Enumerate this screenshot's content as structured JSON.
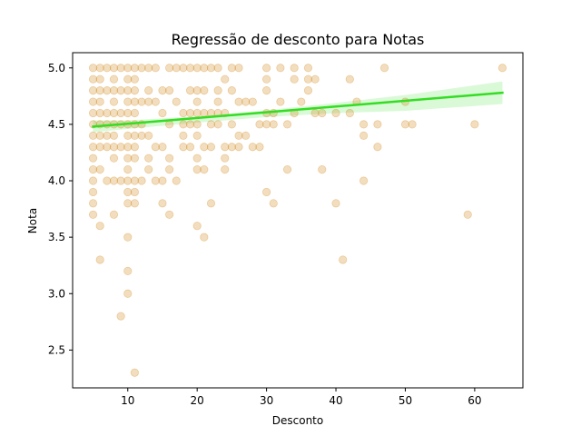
{
  "chart_data": {
    "type": "scatter",
    "title": "Regressão de desconto para Notas",
    "xlabel": "Desconto",
    "ylabel": "Nota",
    "xlim": [
      2.05,
      66.95
    ],
    "ylim": [
      2.165,
      5.135
    ],
    "xticks": [
      10,
      20,
      30,
      40,
      50,
      60
    ],
    "yticks": [
      2.5,
      3.0,
      3.5,
      4.0,
      4.5,
      5.0
    ],
    "xtick_labels": [
      "10",
      "20",
      "30",
      "40",
      "50",
      "60"
    ],
    "ytick_labels": [
      "2.5",
      "3.0",
      "3.5",
      "4.0",
      "4.5",
      "5.0"
    ],
    "grid": false,
    "point_color": "#cc7a00",
    "point_alpha": 0.25,
    "line_color": "#33dd22",
    "band_color": "#33dd22",
    "regression": {
      "x": [
        5,
        64
      ],
      "y": [
        4.48,
        4.78
      ]
    },
    "band": {
      "x": [
        5,
        10,
        20,
        30,
        40,
        50,
        64
      ],
      "upper": [
        4.535,
        4.535,
        4.57,
        4.625,
        4.69,
        4.76,
        4.88
      ],
      "lower": [
        4.43,
        4.46,
        4.515,
        4.565,
        4.6,
        4.62,
        4.68
      ]
    },
    "points": [
      [
        5,
        5.0
      ],
      [
        5,
        4.9
      ],
      [
        5,
        4.8
      ],
      [
        5,
        4.7
      ],
      [
        5,
        4.6
      ],
      [
        5,
        4.5
      ],
      [
        5,
        4.4
      ],
      [
        5,
        4.3
      ],
      [
        5,
        4.2
      ],
      [
        5,
        4.1
      ],
      [
        5,
        4.0
      ],
      [
        5,
        3.9
      ],
      [
        5,
        3.8
      ],
      [
        5,
        3.7
      ],
      [
        6,
        5.0
      ],
      [
        6,
        4.9
      ],
      [
        6,
        4.8
      ],
      [
        6,
        4.7
      ],
      [
        6,
        4.6
      ],
      [
        6,
        4.5
      ],
      [
        6,
        4.4
      ],
      [
        6,
        4.3
      ],
      [
        6,
        4.1
      ],
      [
        6,
        3.6
      ],
      [
        6,
        3.3
      ],
      [
        7,
        5.0
      ],
      [
        7,
        4.8
      ],
      [
        7,
        4.6
      ],
      [
        7,
        4.5
      ],
      [
        7,
        4.4
      ],
      [
        7,
        4.3
      ],
      [
        7,
        4.0
      ],
      [
        8,
        5.0
      ],
      [
        8,
        4.9
      ],
      [
        8,
        4.8
      ],
      [
        8,
        4.7
      ],
      [
        8,
        4.6
      ],
      [
        8,
        4.5
      ],
      [
        8,
        4.4
      ],
      [
        8,
        4.3
      ],
      [
        8,
        4.2
      ],
      [
        8,
        4.0
      ],
      [
        8,
        3.7
      ],
      [
        9,
        5.0
      ],
      [
        9,
        4.8
      ],
      [
        9,
        4.6
      ],
      [
        9,
        4.5
      ],
      [
        9,
        4.3
      ],
      [
        9,
        4.0
      ],
      [
        9,
        2.8
      ],
      [
        10,
        5.0
      ],
      [
        10,
        4.9
      ],
      [
        10,
        4.8
      ],
      [
        10,
        4.7
      ],
      [
        10,
        4.6
      ],
      [
        10,
        4.5
      ],
      [
        10,
        4.4
      ],
      [
        10,
        4.3
      ],
      [
        10,
        4.2
      ],
      [
        10,
        4.1
      ],
      [
        10,
        4.0
      ],
      [
        10,
        3.9
      ],
      [
        10,
        3.8
      ],
      [
        10,
        3.5
      ],
      [
        10,
        3.2
      ],
      [
        10,
        3.0
      ],
      [
        11,
        5.0
      ],
      [
        11,
        4.9
      ],
      [
        11,
        4.8
      ],
      [
        11,
        4.7
      ],
      [
        11,
        4.6
      ],
      [
        11,
        4.5
      ],
      [
        11,
        4.4
      ],
      [
        11,
        4.3
      ],
      [
        11,
        4.2
      ],
      [
        11,
        4.0
      ],
      [
        11,
        3.9
      ],
      [
        11,
        3.8
      ],
      [
        11,
        2.3
      ],
      [
        12,
        5.0
      ],
      [
        12,
        4.7
      ],
      [
        12,
        4.5
      ],
      [
        12,
        4.4
      ],
      [
        12,
        4.0
      ],
      [
        13,
        5.0
      ],
      [
        13,
        4.8
      ],
      [
        13,
        4.7
      ],
      [
        13,
        4.4
      ],
      [
        13,
        4.2
      ],
      [
        13,
        4.1
      ],
      [
        14,
        5.0
      ],
      [
        14,
        4.7
      ],
      [
        14,
        4.3
      ],
      [
        14,
        4.0
      ],
      [
        15,
        4.8
      ],
      [
        15,
        4.6
      ],
      [
        15,
        4.3
      ],
      [
        15,
        4.0
      ],
      [
        15,
        3.8
      ],
      [
        16,
        5.0
      ],
      [
        16,
        4.8
      ],
      [
        16,
        4.5
      ],
      [
        16,
        4.2
      ],
      [
        16,
        4.1
      ],
      [
        16,
        3.7
      ],
      [
        17,
        5.0
      ],
      [
        17,
        4.7
      ],
      [
        17,
        4.0
      ],
      [
        18,
        5.0
      ],
      [
        18,
        4.6
      ],
      [
        18,
        4.5
      ],
      [
        18,
        4.4
      ],
      [
        18,
        4.3
      ],
      [
        19,
        5.0
      ],
      [
        19,
        4.8
      ],
      [
        19,
        4.6
      ],
      [
        19,
        4.5
      ],
      [
        19,
        4.3
      ],
      [
        20,
        5.0
      ],
      [
        20,
        4.8
      ],
      [
        20,
        4.7
      ],
      [
        20,
        4.6
      ],
      [
        20,
        4.5
      ],
      [
        20,
        4.4
      ],
      [
        20,
        4.2
      ],
      [
        20,
        4.1
      ],
      [
        20,
        3.6
      ],
      [
        21,
        5.0
      ],
      [
        21,
        4.8
      ],
      [
        21,
        4.6
      ],
      [
        21,
        4.3
      ],
      [
        21,
        4.1
      ],
      [
        21,
        3.5
      ],
      [
        22,
        5.0
      ],
      [
        22,
        4.6
      ],
      [
        22,
        4.5
      ],
      [
        22,
        4.3
      ],
      [
        22,
        3.8
      ],
      [
        23,
        5.0
      ],
      [
        23,
        4.8
      ],
      [
        23,
        4.7
      ],
      [
        23,
        4.6
      ],
      [
        23,
        4.5
      ],
      [
        24,
        4.9
      ],
      [
        24,
        4.6
      ],
      [
        24,
        4.3
      ],
      [
        24,
        4.2
      ],
      [
        24,
        4.1
      ],
      [
        25,
        5.0
      ],
      [
        25,
        4.8
      ],
      [
        25,
        4.5
      ],
      [
        25,
        4.3
      ],
      [
        26,
        5.0
      ],
      [
        26,
        4.7
      ],
      [
        26,
        4.4
      ],
      [
        26,
        4.3
      ],
      [
        27,
        4.7
      ],
      [
        27,
        4.4
      ],
      [
        28,
        4.7
      ],
      [
        28,
        4.3
      ],
      [
        29,
        4.5
      ],
      [
        29,
        4.3
      ],
      [
        30,
        5.0
      ],
      [
        30,
        4.9
      ],
      [
        30,
        4.8
      ],
      [
        30,
        4.6
      ],
      [
        30,
        4.5
      ],
      [
        30,
        3.9
      ],
      [
        31,
        4.6
      ],
      [
        31,
        4.5
      ],
      [
        31,
        3.8
      ],
      [
        32,
        5.0
      ],
      [
        32,
        4.7
      ],
      [
        33,
        4.5
      ],
      [
        33,
        4.1
      ],
      [
        34,
        5.0
      ],
      [
        34,
        4.9
      ],
      [
        34,
        4.6
      ],
      [
        35,
        4.7
      ],
      [
        36,
        5.0
      ],
      [
        36,
        4.9
      ],
      [
        36,
        4.8
      ],
      [
        37,
        4.9
      ],
      [
        37,
        4.6
      ],
      [
        38,
        4.6
      ],
      [
        38,
        4.1
      ],
      [
        40,
        4.6
      ],
      [
        40,
        3.8
      ],
      [
        41,
        3.3
      ],
      [
        42,
        4.9
      ],
      [
        42,
        4.6
      ],
      [
        43,
        4.7
      ],
      [
        44,
        4.5
      ],
      [
        44,
        4.4
      ],
      [
        44,
        4.0
      ],
      [
        46,
        4.5
      ],
      [
        46,
        4.3
      ],
      [
        47,
        5.0
      ],
      [
        50,
        4.7
      ],
      [
        50,
        4.5
      ],
      [
        51,
        4.5
      ],
      [
        59,
        3.7
      ],
      [
        60,
        4.5
      ],
      [
        64,
        5.0
      ]
    ]
  }
}
